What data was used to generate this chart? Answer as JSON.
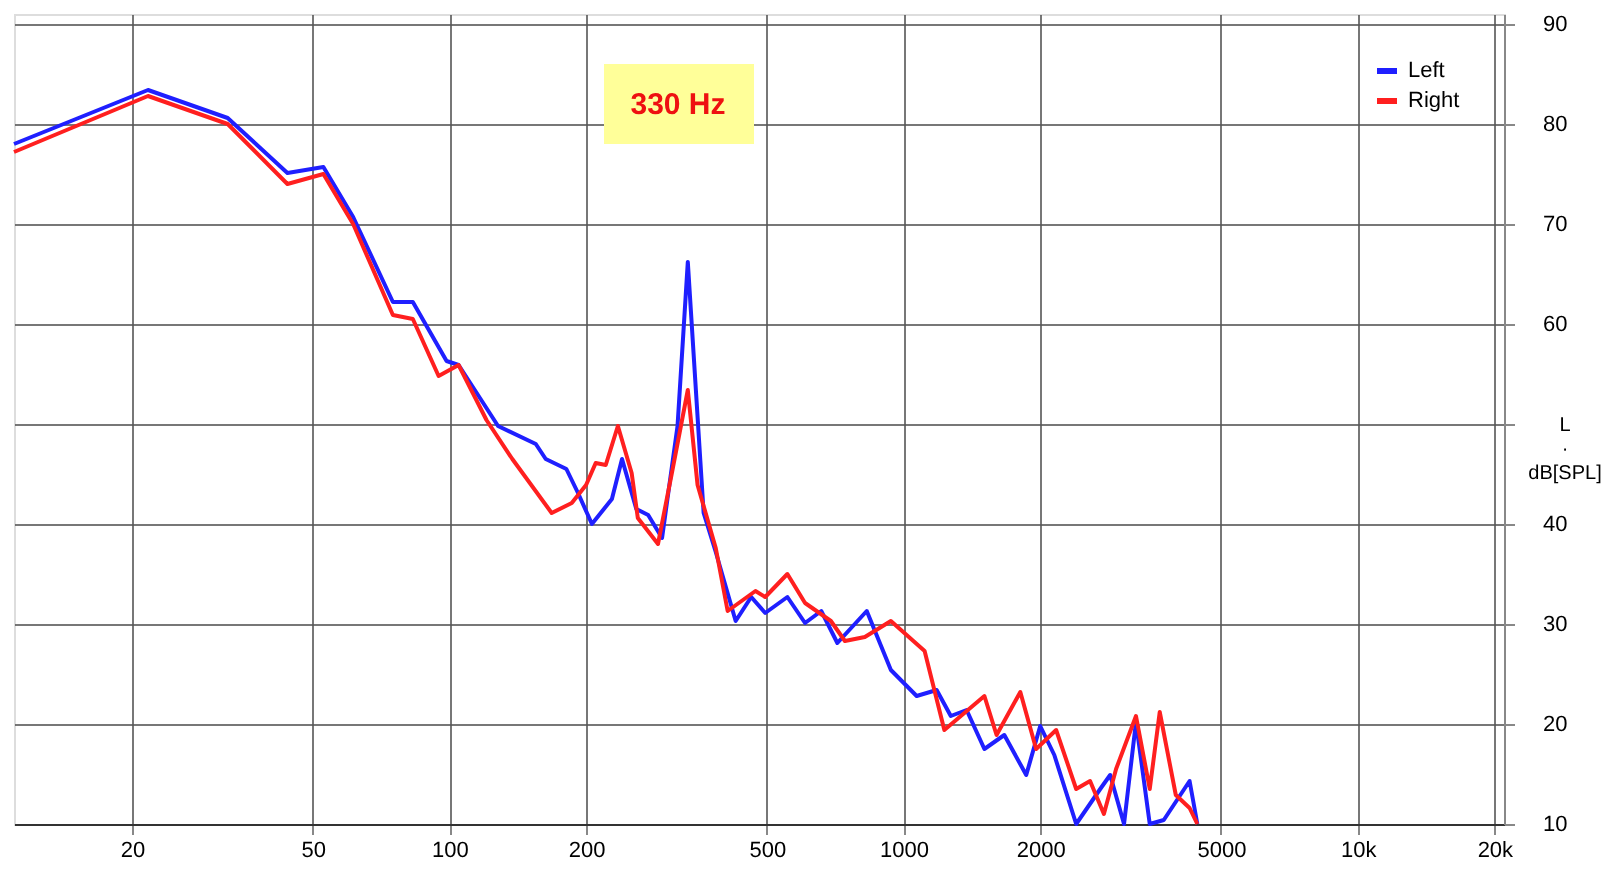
{
  "chart_data": {
    "type": "line",
    "ylabel": "L · dB[SPL]",
    "annotations": [
      "330 Hz"
    ],
    "log": "x",
    "grid": true,
    "legend": "top right",
    "line_style": "solid",
    "marker": "none",
    "xlim": [
      11,
      21000
    ],
    "ylim": [
      10,
      91
    ],
    "xticks": [
      20,
      50,
      100,
      200,
      500,
      1000,
      2000,
      5000,
      {
        "value": 10000,
        "label": "10k"
      },
      {
        "value": 20000,
        "label": "20k"
      }
    ],
    "yticks": [
      10,
      20,
      30,
      40,
      {
        "value": 50,
        "label": null
      },
      60,
      70,
      80,
      90
    ],
    "series": [
      {
        "name": "Left",
        "color": "#1f1fff",
        "x": [
          11,
          21.7,
          32.5,
          44,
          52.8,
          61.4,
          75.1,
          83.1,
          98.6,
          104.8,
          128,
          155,
          163,
          181,
          192,
          206,
          228,
          240,
          258,
          274,
          294,
          318,
          335,
          363,
          386,
          427,
          462,
          496,
          555,
          607,
          659,
          715,
          830,
          938,
          1069,
          1183,
          1271,
          1377,
          1507,
          1667,
          1863,
          2000,
          2148,
          2400,
          2711,
          2851,
          3059,
          3250,
          3485,
          3742,
          4265,
          4436
        ],
        "values": [
          78.0,
          83.4,
          80.6,
          75.1,
          75.7,
          70.7,
          62.2,
          62.2,
          56.3,
          55.9,
          49.8,
          48.0,
          46.5,
          45.5,
          43.1,
          40.0,
          42.5,
          46.5,
          41.5,
          40.9,
          38.6,
          49.8,
          66.2,
          41.1,
          37.2,
          30.3,
          32.7,
          31.1,
          32.7,
          30.1,
          31.3,
          28.1,
          31.3,
          25.4,
          22.8,
          23.4,
          20.8,
          21.4,
          17.5,
          18.9,
          14.9,
          19.8,
          16.9,
          10,
          13.5,
          14.9,
          10,
          20.2,
          10,
          10.4,
          14.3,
          10
        ]
      },
      {
        "name": "Right",
        "color": "#ff1f1f",
        "x": [
          11,
          21.7,
          32.5,
          44,
          52.8,
          61.4,
          75.1,
          83.1,
          94.7,
          104.8,
          120.7,
          137.6,
          168,
          186,
          200,
          210,
          221,
          235,
          252,
          260,
          288,
          309,
          335,
          352,
          386,
          410,
          472,
          496,
          555,
          607,
          692,
          743,
          822,
          938,
          1113,
          1230,
          1507,
          1603,
          1808,
          1959,
          2168,
          2400,
          2575,
          2762,
          2938,
          3250,
          3485,
          3666,
          3977,
          4265,
          4436
        ],
        "values": [
          77.2,
          82.8,
          80.0,
          74.0,
          75.0,
          70.0,
          60.9,
          60.5,
          54.8,
          55.9,
          50.4,
          46.5,
          41.1,
          42.1,
          43.9,
          46.1,
          45.9,
          49.8,
          45.1,
          40.6,
          38.0,
          45.1,
          53.4,
          43.9,
          37.6,
          31.3,
          33.3,
          32.7,
          35.0,
          32.1,
          30.3,
          28.3,
          28.7,
          30.3,
          27.3,
          19.4,
          22.8,
          18.9,
          23.2,
          17.5,
          19.4,
          13.5,
          14.3,
          11.0,
          15.5,
          20.8,
          13.5,
          21.2,
          12.9,
          11.6,
          10
        ]
      }
    ]
  }
}
